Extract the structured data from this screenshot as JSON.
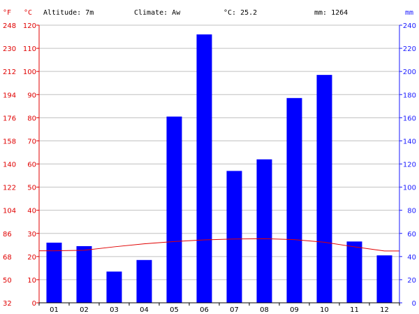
{
  "header": {
    "altitude": "Altitude: 7m",
    "climate": "Climate: Aw",
    "avg_temp": "°C: 25.2",
    "precip_total": "mm: 1264"
  },
  "chart_data": {
    "type": "bar",
    "title": "",
    "units": {
      "fahrenheit": "°F",
      "celsius": "°C",
      "precip": "mm"
    },
    "categories": [
      "01",
      "02",
      "03",
      "04",
      "05",
      "06",
      "07",
      "08",
      "09",
      "10",
      "11",
      "12"
    ],
    "series": [
      {
        "name": "",
        "kind": "bar",
        "axis": "mm",
        "values": [
          52,
          49,
          27,
          37,
          161,
          232,
          114,
          124,
          177,
          197,
          53,
          41
        ]
      },
      {
        "name": "",
        "kind": "line",
        "axis": "celsius",
        "values": [
          22.5,
          22.7,
          24.2,
          25.5,
          26.5,
          27.2,
          27.6,
          27.7,
          27.3,
          26.2,
          24.2,
          22.4
        ]
      }
    ],
    "celsius_ticks": [
      "0",
      "10",
      "20",
      "30",
      "40",
      "50",
      "60",
      "70",
      "80",
      "90",
      "100",
      "110",
      "120"
    ],
    "fahrenheit_ticks": [
      "32",
      "50",
      "68",
      "86",
      "104",
      "122",
      "140",
      "158",
      "176",
      "194",
      "212",
      "230",
      "248"
    ],
    "mm_ticks": [
      "0",
      "20",
      "40",
      "60",
      "80",
      "100",
      "120",
      "140",
      "160",
      "180",
      "200",
      "220",
      "240"
    ],
    "celsius_range": [
      0,
      120
    ],
    "mm_range": [
      0,
      240
    ],
    "grid": true,
    "colors": {
      "bar": "#0000ff",
      "line": "#e00000",
      "grid": "#c0c0c0",
      "left_axis": "#e00000",
      "right_axis": "#1a1aff"
    }
  }
}
